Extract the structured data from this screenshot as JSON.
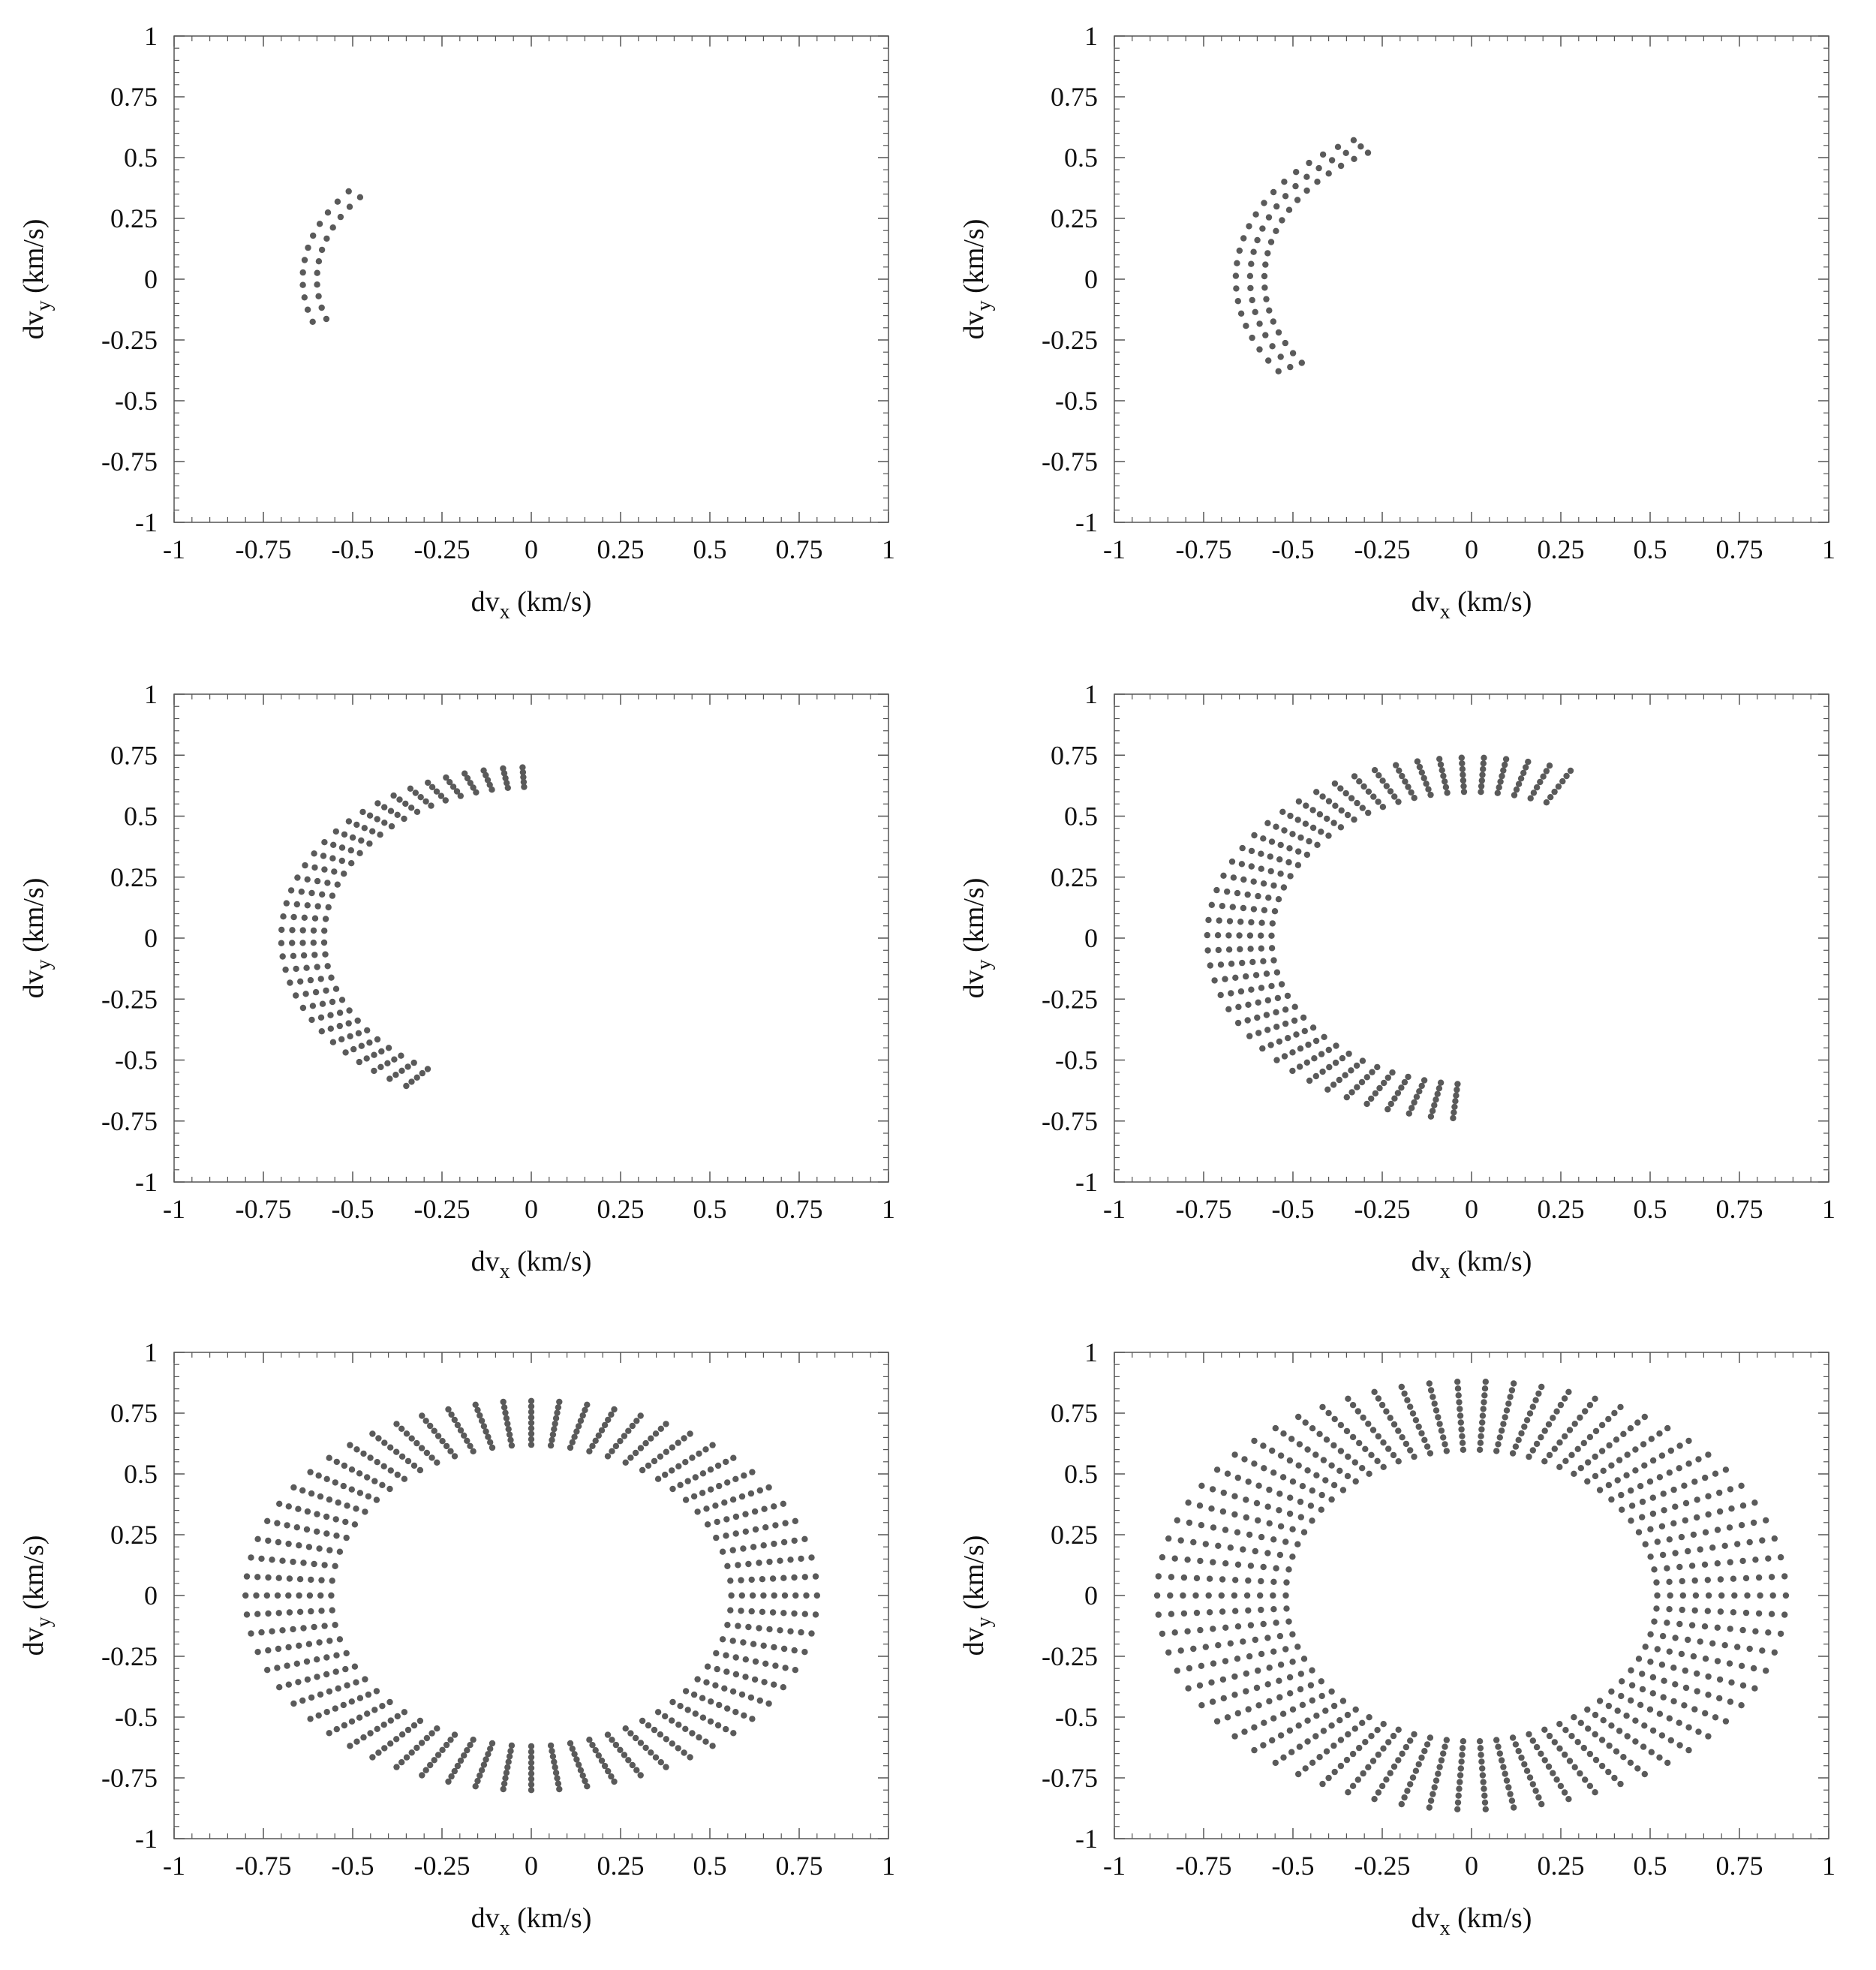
{
  "chart_data": [
    {
      "type": "scatter",
      "panel": "top-left",
      "xlabel": "dv",
      "xlabel_sub": "x",
      "xlabel_unit": " (km/s)",
      "ylabel": "dv",
      "ylabel_sub": "y",
      "ylabel_unit": " (km/s)",
      "xlim": [
        -1,
        1
      ],
      "ylim": [
        -1,
        1
      ],
      "xticks": [
        "-1",
        "-0.75",
        "-0.5",
        "-0.25",
        "0",
        "0.25",
        "0.5",
        "0.75",
        "1"
      ],
      "yticks": [
        "-1",
        "-0.75",
        "-0.5",
        "-0.25",
        "0",
        "0.25",
        "0.5",
        "0.75",
        "1"
      ],
      "point_color": "#5a5a5a",
      "series": [
        {
          "ring": "ellipse",
          "rx_inner": 0.6,
          "rx_outer": 0.64,
          "ry_inner": 0.56,
          "ry_outer": 0.6,
          "x_shift": 0,
          "theta_start_deg": 143,
          "theta_end_deg": 197,
          "spokes": 12,
          "rings": 2
        }
      ]
    },
    {
      "type": "scatter",
      "panel": "top-right",
      "xlabel": "dv",
      "xlabel_sub": "x",
      "xlabel_unit": " (km/s)",
      "ylabel": "dv",
      "ylabel_sub": "y",
      "ylabel_unit": " (km/s)",
      "xlim": [
        -1,
        1
      ],
      "ylim": [
        -1,
        1
      ],
      "xticks": [
        "-1",
        "-0.75",
        "-0.5",
        "-0.25",
        "0",
        "0.25",
        "0.5",
        "0.75",
        "1"
      ],
      "yticks": [
        "-1",
        "-0.75",
        "-0.5",
        "-0.25",
        "0",
        "0.25",
        "0.5",
        "0.75",
        "1"
      ],
      "point_color": "#5a5a5a",
      "series": [
        {
          "ring": "ellipse",
          "rx_inner": 0.58,
          "rx_outer": 0.66,
          "ry_inner": 0.6,
          "ry_outer": 0.66,
          "x_shift": 0,
          "theta_start_deg": 120,
          "theta_end_deg": 215,
          "spokes": 22,
          "rings": 3
        }
      ]
    },
    {
      "type": "scatter",
      "panel": "middle-left",
      "xlabel": "dv",
      "xlabel_sub": "x",
      "xlabel_unit": " (km/s)",
      "ylabel": "dv",
      "ylabel_sub": "y",
      "ylabel_unit": " (km/s)",
      "xlim": [
        -1,
        1
      ],
      "ylim": [
        -1,
        1
      ],
      "xticks": [
        "-1",
        "-0.75",
        "-0.5",
        "-0.25",
        "0",
        "0.25",
        "0.5",
        "0.75",
        "1"
      ],
      "yticks": [
        "-1",
        "-0.75",
        "-0.5",
        "-0.25",
        "0",
        "0.25",
        "0.5",
        "0.75",
        "1"
      ],
      "point_color": "#5a5a5a",
      "series": [
        {
          "ring": "ellipse",
          "rx_inner": 0.58,
          "rx_outer": 0.7,
          "ry_inner": 0.62,
          "ry_outer": 0.7,
          "x_shift": 0,
          "theta_start_deg": 92,
          "theta_end_deg": 240,
          "spokes": 34,
          "rings": 5
        }
      ]
    },
    {
      "type": "scatter",
      "panel": "middle-right",
      "xlabel": "dv",
      "xlabel_sub": "x",
      "xlabel_unit": " (km/s)",
      "ylabel": "dv",
      "ylabel_sub": "y",
      "ylabel_unit": " (km/s)",
      "xlim": [
        -1,
        1
      ],
      "ylim": [
        -1,
        1
      ],
      "xticks": [
        "-1",
        "-0.75",
        "-0.5",
        "-0.25",
        "0",
        "0.25",
        "0.5",
        "0.75",
        "1"
      ],
      "yticks": [
        "-1",
        "-0.75",
        "-0.5",
        "-0.25",
        "0",
        "0.25",
        "0.5",
        "0.75",
        "1"
      ],
      "point_color": "#5a5a5a",
      "series": [
        {
          "ring": "ellipse",
          "rx_inner": 0.56,
          "rx_outer": 0.74,
          "ry_inner": 0.6,
          "ry_outer": 0.74,
          "x_shift": 0,
          "theta_start_deg": 68,
          "theta_end_deg": 266,
          "spokes": 42,
          "rings": 7
        }
      ]
    },
    {
      "type": "scatter",
      "panel": "bottom-left",
      "xlabel": "dv",
      "xlabel_sub": "x",
      "xlabel_unit": " (km/s)",
      "ylabel": "dv",
      "ylabel_sub": "y",
      "ylabel_unit": " (km/s)",
      "xlim": [
        -1,
        1
      ],
      "ylim": [
        -1,
        1
      ],
      "xticks": [
        "-1",
        "-0.75",
        "-0.5",
        "-0.25",
        "0",
        "0.25",
        "0.5",
        "0.75",
        "1"
      ],
      "yticks": [
        "-1",
        "-0.75",
        "-0.5",
        "-0.25",
        "0",
        "0.25",
        "0.5",
        "0.75",
        "1"
      ],
      "point_color": "#5a5a5a",
      "series": [
        {
          "ring": "ellipse",
          "rx_inner": 0.56,
          "rx_outer": 0.8,
          "ry_inner": 0.62,
          "ry_outer": 0.8,
          "x_shift": 0,
          "theta_start_deg": 0,
          "theta_end_deg": 360,
          "spokes": 64,
          "rings": 9,
          "outer_fade": true
        }
      ]
    },
    {
      "type": "scatter",
      "panel": "bottom-right",
      "xlabel": "dv",
      "xlabel_sub": "x",
      "xlabel_unit": " (km/s)",
      "ylabel": "dv",
      "ylabel_sub": "y",
      "ylabel_unit": " (km/s)",
      "xlim": [
        -1,
        1
      ],
      "ylim": [
        -1,
        1
      ],
      "xticks": [
        "-1",
        "-0.75",
        "-0.5",
        "-0.25",
        "0",
        "0.25",
        "0.5",
        "0.75",
        "1"
      ],
      "yticks": [
        "-1",
        "-0.75",
        "-0.5",
        "-0.25",
        "0",
        "0.25",
        "0.5",
        "0.75",
        "1"
      ],
      "point_color": "#5a5a5a",
      "series": [
        {
          "ring": "ellipse",
          "rx_inner": 0.52,
          "rx_outer": 0.88,
          "ry_inner": 0.6,
          "ry_outer": 0.88,
          "x_shift": 0,
          "theta_start_deg": 0,
          "theta_end_deg": 360,
          "spokes": 70,
          "rings": 11,
          "outer_fade": true
        }
      ]
    }
  ]
}
